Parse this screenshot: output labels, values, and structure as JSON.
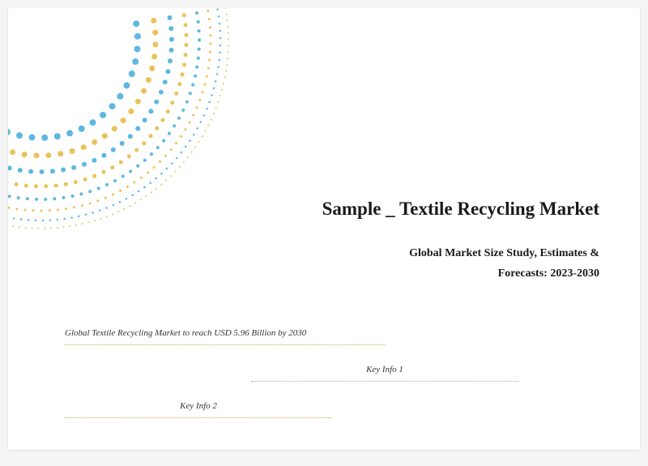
{
  "title": "Sample _ Textile Recycling Market",
  "subtitle_line1": "Global Market Size Study, Estimates &",
  "subtitle_line2": "Forecasts: 2023-2030",
  "info_main": "Global Textile Recycling Market to reach USD 5.96 Billion by 2030",
  "info_1": "Key Info 1",
  "info_2": "Key Info 2",
  "decoration": {
    "type": "dotted-arc-rings",
    "color_blue": "#5eb8e0",
    "color_yellow": "#e8c35a",
    "background": "#ffffff",
    "rings": 6,
    "dot_size_min": 2,
    "dot_size_max": 8
  },
  "styling": {
    "page_background": "#ffffff",
    "canvas_background": "#f5f5f5",
    "title_color": "#1a1a1a",
    "title_fontsize": 23,
    "subtitle_fontsize": 14,
    "info_fontsize": 11,
    "line_color_yellow": "#d4a849",
    "line_color_gray": "#aaaaaa",
    "font_family": "Georgia, Times New Roman"
  }
}
